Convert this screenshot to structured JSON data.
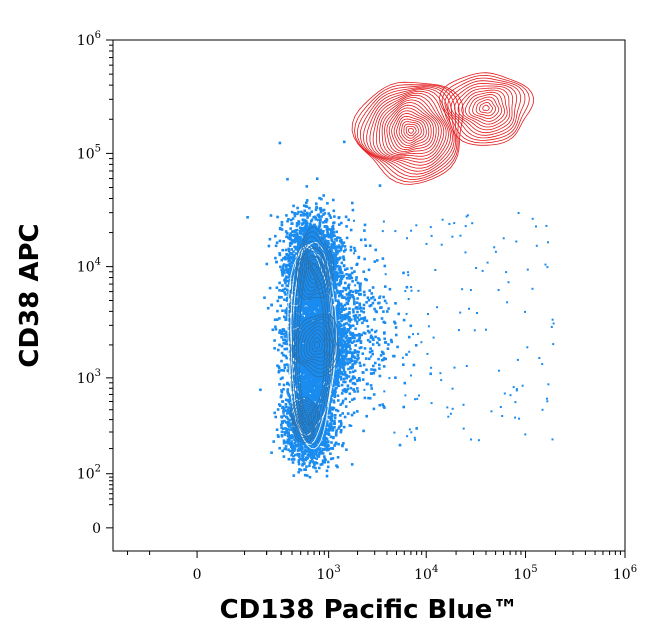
{
  "chart_data": {
    "type": "scatter",
    "title": "",
    "xlabel": "CD138 Pacific Blue™",
    "ylabel": "CD38 APC",
    "x_scale": "biexponential",
    "y_scale": "biexponential",
    "xlim": [
      -300,
      1000000
    ],
    "ylim": [
      -30,
      1000000
    ],
    "x_ticks": [
      {
        "value": 0,
        "base": "0",
        "exp": ""
      },
      {
        "value": 1000,
        "base": "10",
        "exp": "3"
      },
      {
        "value": 10000,
        "base": "10",
        "exp": "4"
      },
      {
        "value": 100000,
        "base": "10",
        "exp": "5"
      },
      {
        "value": 1000000,
        "base": "10",
        "exp": "6"
      }
    ],
    "y_ticks": [
      {
        "value": 0,
        "base": "0",
        "exp": ""
      },
      {
        "value": 100,
        "base": "10",
        "exp": "2"
      },
      {
        "value": 1000,
        "base": "10",
        "exp": "3"
      },
      {
        "value": 10000,
        "base": "10",
        "exp": "4"
      },
      {
        "value": 100000,
        "base": "10",
        "exp": "5"
      },
      {
        "value": 1000000,
        "base": "10",
        "exp": "6"
      }
    ],
    "grid": false,
    "legend": "none",
    "series": [
      {
        "color": "#1a8cf0",
        "style": "dot-density-with-contours",
        "centers": [
          {
            "x": 700,
            "y": 10000
          },
          {
            "x": 700,
            "y": 2000
          },
          {
            "x": 550,
            "y": 400
          }
        ]
      },
      {
        "color": "#e31a1c",
        "style": "contours",
        "centers": [
          {
            "x": 8000,
            "y": 150000
          },
          {
            "x": 40000,
            "y": 250000
          }
        ]
      }
    ]
  }
}
